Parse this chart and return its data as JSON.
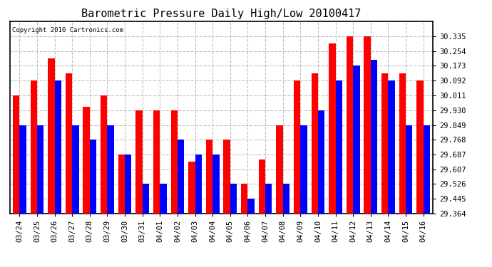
{
  "title": "Barometric Pressure Daily High/Low 20100417",
  "copyright": "Copyright 2010 Cartronics.com",
  "dates": [
    "03/24",
    "03/25",
    "03/26",
    "03/27",
    "03/28",
    "03/29",
    "03/30",
    "03/31",
    "04/01",
    "04/02",
    "04/03",
    "04/04",
    "04/05",
    "04/06",
    "04/07",
    "04/08",
    "04/09",
    "04/10",
    "04/11",
    "04/12",
    "04/13",
    "04/14",
    "04/15",
    "04/16"
  ],
  "highs": [
    30.011,
    30.092,
    30.214,
    30.13,
    29.95,
    30.011,
    29.687,
    29.93,
    29.93,
    29.93,
    29.65,
    29.768,
    29.768,
    29.526,
    29.66,
    29.849,
    30.092,
    30.13,
    30.295,
    30.335,
    30.335,
    30.13,
    30.13,
    30.092
  ],
  "lows": [
    29.849,
    29.849,
    30.092,
    29.849,
    29.768,
    29.849,
    29.687,
    29.526,
    29.526,
    29.768,
    29.687,
    29.687,
    29.526,
    29.445,
    29.526,
    29.526,
    29.849,
    29.93,
    30.092,
    30.173,
    30.205,
    30.092,
    29.849,
    29.849
  ],
  "high_color": "#ff0000",
  "low_color": "#0000ff",
  "bg_color": "#ffffff",
  "grid_color": "#c0c0c0",
  "ylim_min": 29.364,
  "ylim_max": 30.416,
  "yticks": [
    29.364,
    29.445,
    29.526,
    29.607,
    29.687,
    29.768,
    29.849,
    29.93,
    30.011,
    30.092,
    30.173,
    30.254,
    30.335
  ],
  "bar_width": 0.38
}
